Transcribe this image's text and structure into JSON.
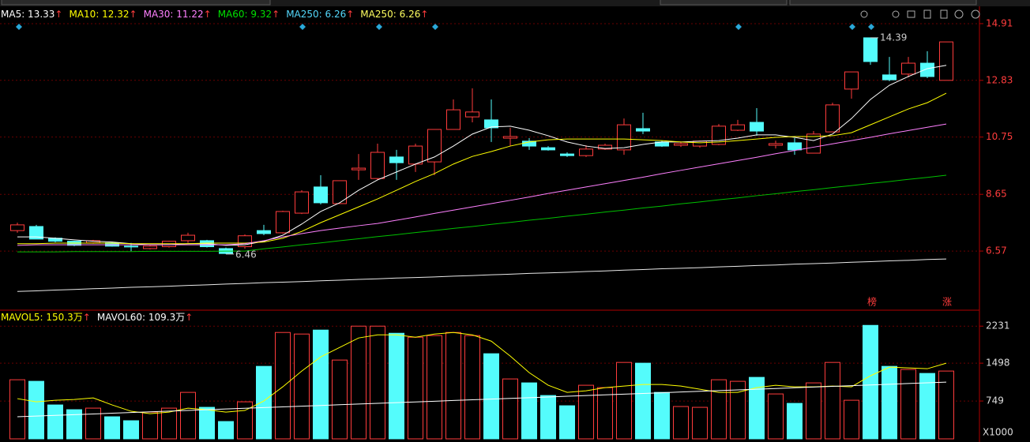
{
  "chart_data": [
    {
      "type": "candlestick",
      "up_color": "#ff3c3c",
      "down_color": "#54fcfc",
      "open": [
        7.32,
        7.47,
        7.04,
        6.93,
        6.87,
        6.87,
        6.75,
        6.66,
        6.73,
        6.95,
        6.95,
        6.66,
        6.73,
        7.32,
        7.24,
        7.96,
        8.92,
        8.31,
        9.55,
        9.23,
        10.02,
        9.76,
        9.84,
        11.03,
        11.49,
        11.38,
        10.71,
        10.6,
        10.36,
        10.13,
        10.07,
        10.31,
        10.28,
        11.06,
        10.57,
        10.45,
        10.42,
        10.48,
        11.0,
        11.29,
        10.45,
        10.54,
        10.16,
        10.94,
        12.51,
        14.39,
        13.03,
        13.06,
        13.46,
        12.83
      ],
      "high": [
        7.61,
        7.53,
        7.07,
        6.95,
        6.98,
        6.9,
        6.87,
        6.78,
        6.95,
        7.24,
        6.98,
        6.7,
        7.18,
        7.53,
        8.05,
        8.8,
        9.35,
        9.15,
        10.13,
        10.51,
        10.28,
        10.51,
        11.03,
        12.13,
        12.54,
        12.13,
        11.09,
        10.71,
        10.42,
        10.19,
        10.45,
        10.51,
        11.43,
        11.64,
        10.62,
        10.57,
        10.62,
        11.23,
        11.38,
        11.81,
        10.62,
        10.71,
        10.97,
        12.01,
        13.14,
        14.39,
        13.69,
        13.69,
        13.9,
        14.24
      ],
      "low": [
        7.24,
        7.01,
        6.89,
        6.75,
        6.84,
        6.73,
        6.57,
        6.63,
        6.7,
        6.87,
        6.7,
        6.46,
        6.66,
        7.15,
        7.21,
        7.93,
        8.28,
        8.31,
        9.18,
        9.18,
        9.18,
        9.47,
        9.35,
        11.03,
        11.29,
        10.57,
        10.42,
        10.28,
        10.25,
        10.02,
        10.02,
        10.28,
        10.1,
        10.86,
        10.39,
        10.39,
        10.36,
        10.45,
        10.97,
        10.8,
        10.33,
        10.1,
        10.16,
        10.94,
        12.16,
        13.4,
        12.8,
        12.94,
        12.91,
        12.83
      ],
      "close": [
        7.53,
        7.01,
        6.93,
        6.78,
        6.95,
        6.75,
        6.73,
        6.75,
        6.93,
        7.15,
        6.73,
        6.48,
        7.13,
        7.21,
        8.02,
        8.74,
        8.34,
        9.15,
        9.61,
        10.19,
        9.81,
        10.42,
        11.03,
        11.75,
        11.67,
        11.09,
        10.77,
        10.42,
        10.28,
        10.07,
        10.31,
        10.45,
        11.2,
        10.97,
        10.42,
        10.51,
        10.6,
        11.15,
        11.2,
        10.97,
        10.51,
        10.28,
        10.86,
        11.93,
        13.14,
        13.52,
        12.85,
        13.46,
        12.97,
        14.24
      ],
      "lines": [
        {
          "color": "#ffffff",
          "values": [
            7.09,
            7.09,
            7.04,
            6.98,
            6.93,
            6.9,
            6.84,
            6.8,
            6.8,
            6.84,
            6.84,
            6.78,
            6.8,
            6.93,
            7.15,
            7.56,
            8.02,
            8.34,
            8.8,
            9.18,
            9.47,
            9.76,
            10.02,
            10.42,
            10.86,
            11.12,
            11.15,
            11.0,
            10.8,
            10.57,
            10.42,
            10.33,
            10.36,
            10.48,
            10.57,
            10.57,
            10.6,
            10.62,
            10.71,
            10.83,
            10.83,
            10.74,
            10.62,
            10.86,
            11.43,
            12.13,
            12.65,
            12.97,
            13.26,
            13.38
          ]
        },
        {
          "color": "#ffff00",
          "values": [
            6.84,
            6.84,
            6.86,
            6.86,
            6.86,
            6.86,
            6.84,
            6.84,
            6.84,
            6.84,
            6.86,
            6.86,
            6.86,
            6.9,
            7.04,
            7.29,
            7.61,
            7.9,
            8.19,
            8.48,
            8.8,
            9.12,
            9.41,
            9.76,
            10.04,
            10.22,
            10.42,
            10.57,
            10.65,
            10.68,
            10.68,
            10.68,
            10.68,
            10.65,
            10.62,
            10.57,
            10.54,
            10.57,
            10.62,
            10.68,
            10.74,
            10.77,
            10.77,
            10.8,
            10.91,
            11.2,
            11.49,
            11.78,
            12.01,
            12.36
          ]
        },
        {
          "color": "#ff80ff",
          "values": [
            6.78,
            6.8,
            6.8,
            6.8,
            6.8,
            6.8,
            6.8,
            6.8,
            6.8,
            6.8,
            6.8,
            6.8,
            6.84,
            6.95,
            7.09,
            7.21,
            7.32,
            7.41,
            7.5,
            7.58,
            7.7,
            7.82,
            7.95,
            8.07,
            8.19,
            8.31,
            8.43,
            8.55,
            8.68,
            8.8,
            8.92,
            9.04,
            9.16,
            9.28,
            9.41,
            9.53,
            9.65,
            9.77,
            9.89,
            10.01,
            10.14,
            10.26,
            10.38,
            10.5,
            10.62,
            10.74,
            10.87,
            10.99,
            11.11,
            11.23
          ]
        },
        {
          "color": "#00c000",
          "values": [
            6.54,
            6.54,
            6.54,
            6.55,
            6.55,
            6.55,
            6.55,
            6.56,
            6.56,
            6.56,
            6.56,
            6.57,
            6.57,
            6.65,
            6.72,
            6.8,
            6.87,
            6.95,
            7.02,
            7.1,
            7.17,
            7.25,
            7.32,
            7.4,
            7.47,
            7.55,
            7.62,
            7.7,
            7.77,
            7.85,
            7.92,
            8.0,
            8.07,
            8.15,
            8.22,
            8.3,
            8.37,
            8.45,
            8.52,
            8.6,
            8.67,
            8.75,
            8.82,
            8.9,
            8.97,
            9.05,
            9.12,
            9.2,
            9.27,
            9.35
          ]
        },
        {
          "color": "#e8e8e8",
          "values": [
            5.09,
            5.11,
            5.14,
            5.16,
            5.19,
            5.21,
            5.24,
            5.26,
            5.28,
            5.31,
            5.33,
            5.36,
            5.38,
            5.41,
            5.43,
            5.45,
            5.48,
            5.5,
            5.53,
            5.55,
            5.58,
            5.6,
            5.62,
            5.65,
            5.67,
            5.7,
            5.72,
            5.75,
            5.77,
            5.79,
            5.82,
            5.84,
            5.87,
            5.89,
            5.92,
            5.94,
            5.96,
            5.99,
            6.01,
            6.04,
            6.06,
            6.09,
            6.11,
            6.13,
            6.16,
            6.18,
            6.21,
            6.23,
            6.26,
            6.28
          ]
        }
      ],
      "legend": [
        {
          "text": "MA5: 13.33",
          "color": "#ffffff"
        },
        {
          "text": "MA10: 12.32",
          "color": "#ffff00"
        },
        {
          "text": "MA30: 11.22",
          "color": "#ff80ff"
        },
        {
          "text": "MA60: 9.32",
          "color": "#00e000"
        },
        {
          "text": "MA250: 6.26",
          "color": "#54d8fc"
        },
        {
          "text": "MA250: 6.26",
          "color": "#ffff60"
        }
      ],
      "arrow": "↑",
      "annotations": [
        {
          "value": 14.39,
          "label": "14.39"
        },
        {
          "value": 6.46,
          "label": "6.46"
        }
      ],
      "events": [
        "榜",
        "涨"
      ],
      "ylim": [
        4.43,
        15.14
      ],
      "yticks": [
        14.91,
        12.83,
        10.75,
        8.65,
        6.57
      ],
      "grid": true
    },
    {
      "type": "bar",
      "values": [
        1170,
        1139,
        671,
        577,
        608,
        437,
        359,
        530,
        608,
        920,
        624,
        343,
        733,
        1435,
        2106,
        2075,
        2153,
        1560,
        2231,
        2231,
        2090,
        2012,
        2044,
        2106,
        2044,
        1685,
        1186,
        1108,
        858,
        655,
        1061,
        1014,
        1513,
        1498,
        920,
        640,
        624,
        1170,
        1139,
        1217,
        889,
        702,
        1108,
        1513,
        764,
        2246,
        1435,
        1373,
        1295,
        1342
      ],
      "lines": [
        {
          "color": "#ffff00",
          "values": [
            796,
            733,
            764,
            780,
            811,
            671,
            546,
            499,
            530,
            608,
            577,
            530,
            562,
            749,
            1030,
            1342,
            1622,
            1810,
            1997,
            2059,
            2059,
            2012,
            2075,
            2106,
            2059,
            1934,
            1638,
            1310,
            1061,
            920,
            951,
            1014,
            1045,
            1076,
            1076,
            1045,
            983,
            920,
            920,
            1014,
            1061,
            1030,
            1030,
            1045,
            1030,
            1248,
            1420,
            1404,
            1388,
            1498
          ]
        },
        {
          "color": "#ffffff",
          "values": [
            437,
            451,
            465,
            479,
            493,
            507,
            521,
            535,
            549,
            563,
            577,
            591,
            605,
            619,
            633,
            647,
            661,
            675,
            689,
            703,
            717,
            731,
            745,
            759,
            773,
            787,
            801,
            815,
            829,
            843,
            857,
            871,
            885,
            899,
            913,
            927,
            941,
            955,
            969,
            983,
            997,
            1011,
            1025,
            1039,
            1053,
            1067,
            1081,
            1095,
            1109,
            1123
          ]
        }
      ],
      "legend": [
        {
          "text": "MAVOL5: 150.3万",
          "color": "#ffff00"
        },
        {
          "text": "MAVOL60: 109.3万",
          "color": "#ffffff"
        }
      ],
      "unit": "X1000",
      "ylim": [
        0,
        2500
      ],
      "yticks": [
        749,
        1498,
        2231
      ],
      "grid": true
    }
  ]
}
